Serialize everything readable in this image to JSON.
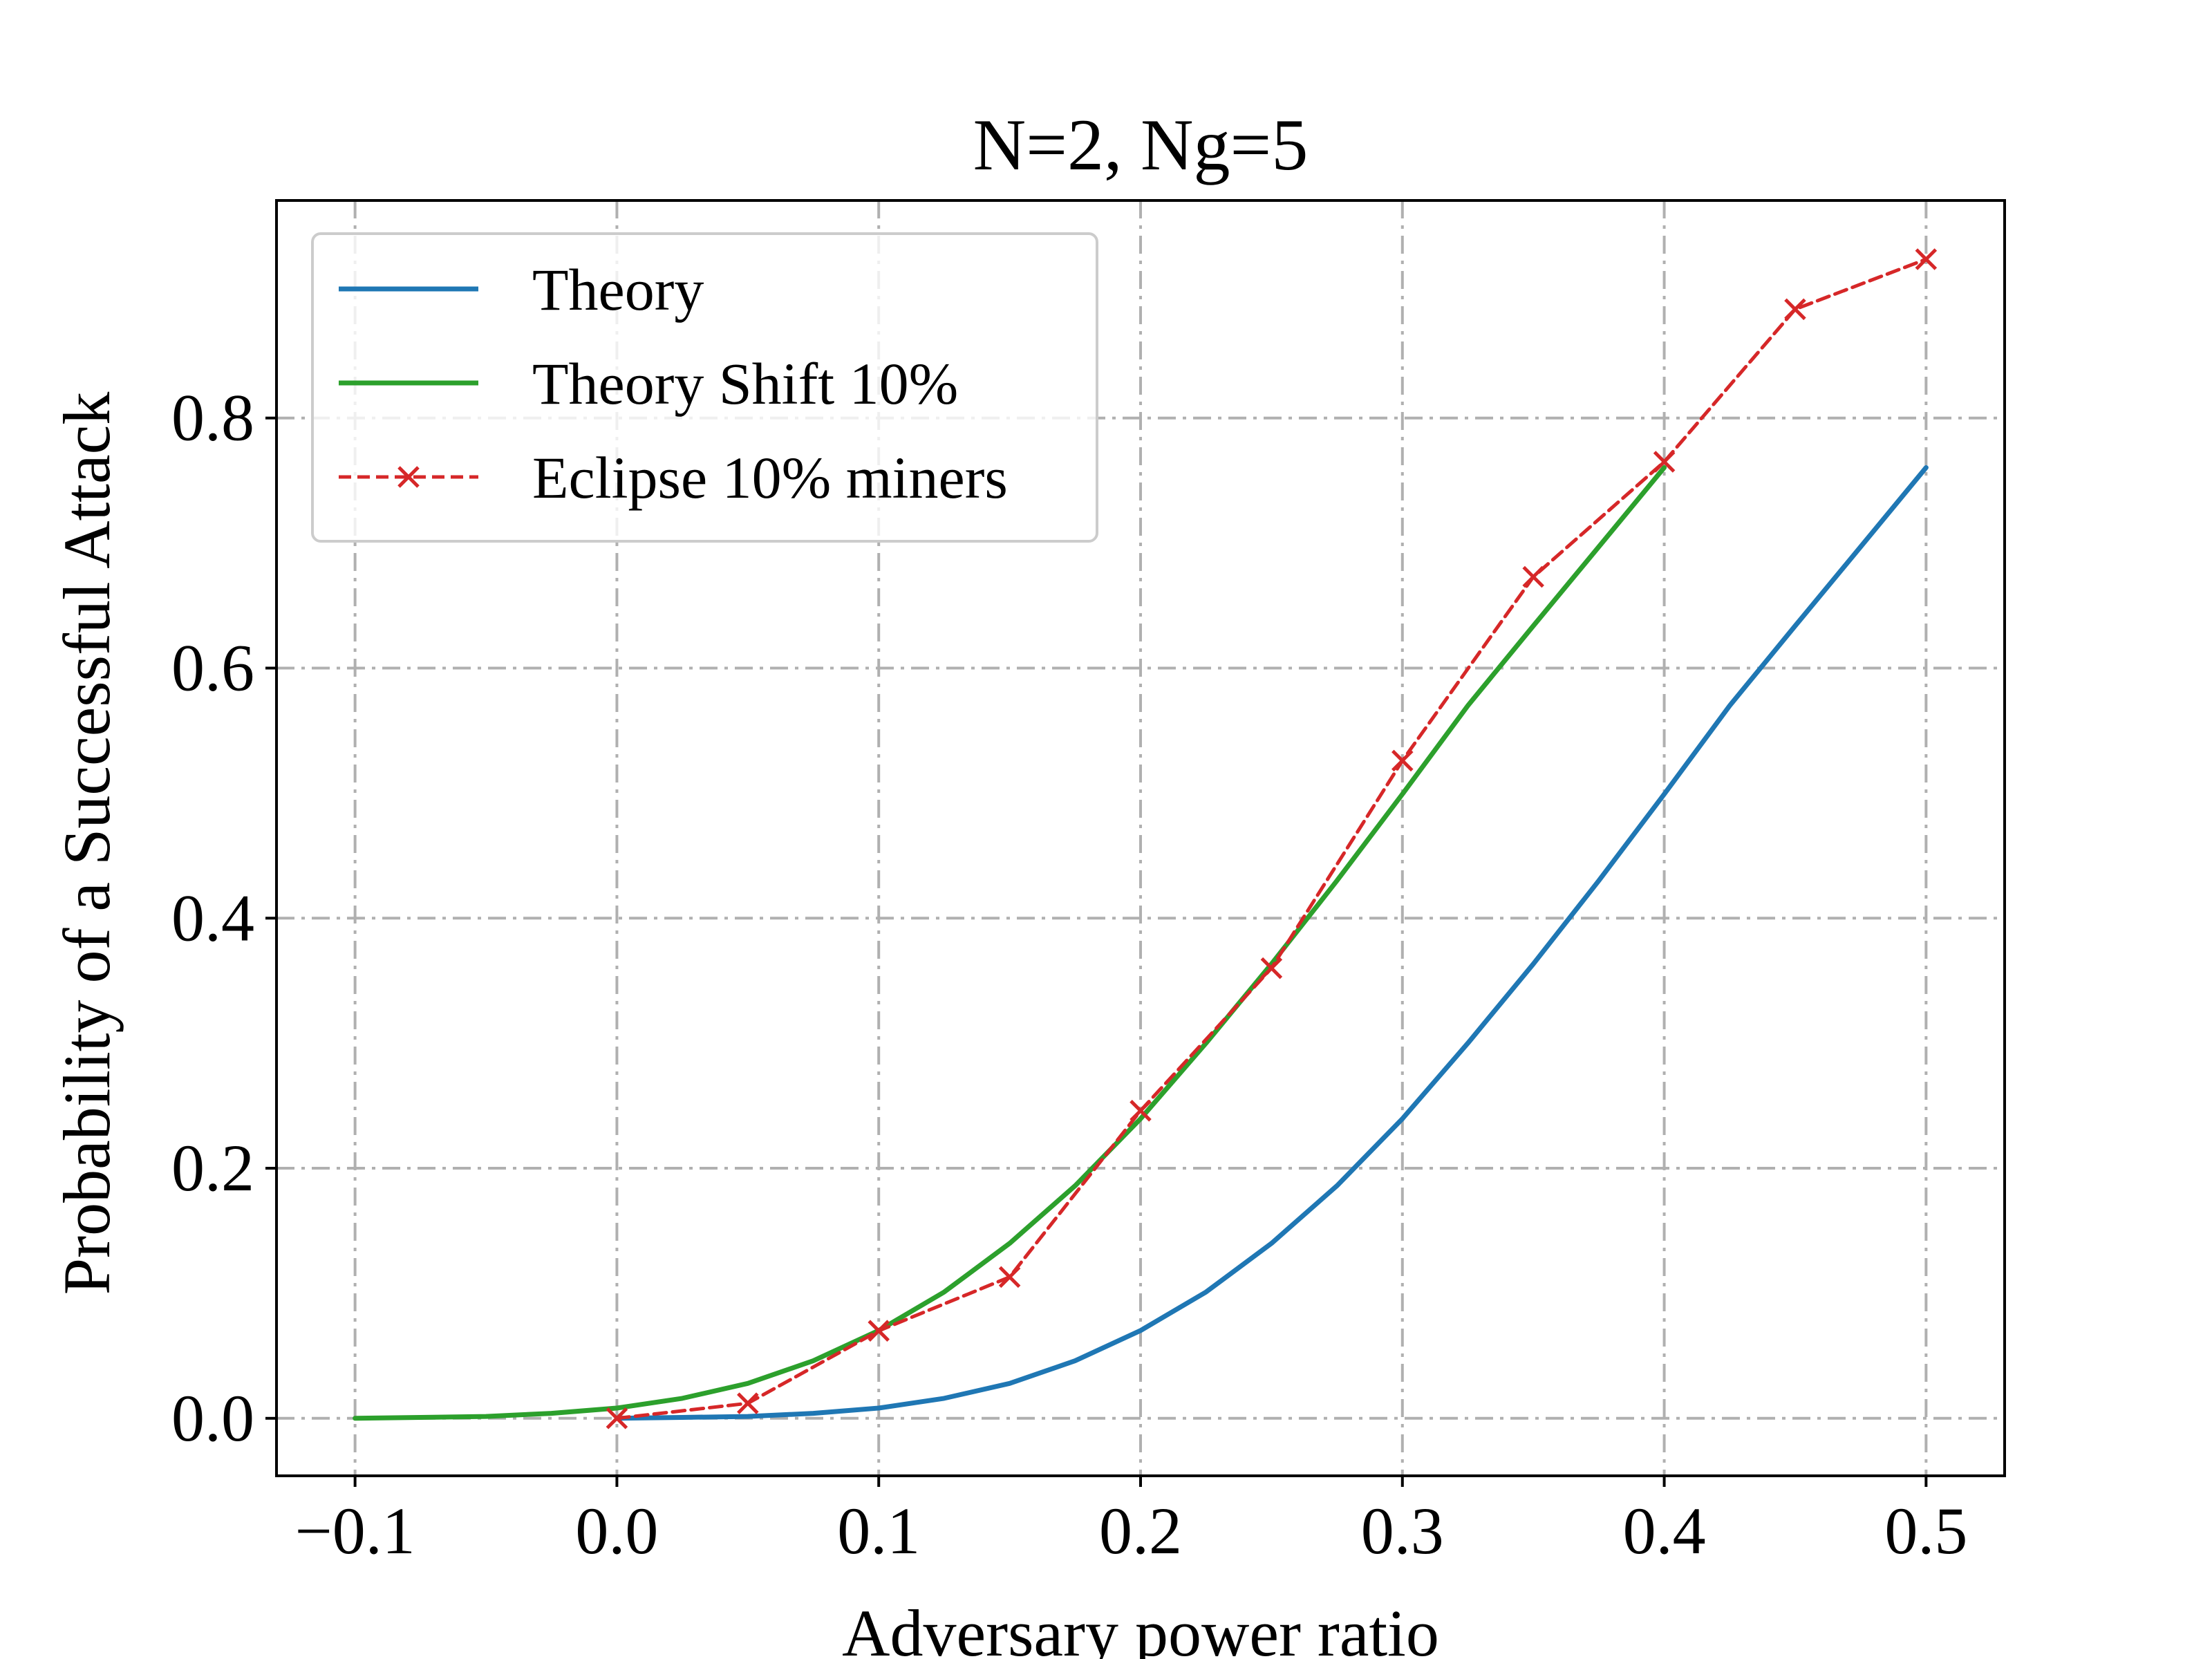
{
  "chart_data": {
    "type": "line",
    "title": "N=2, Ng=5",
    "xlabel": "Adversary power ratio",
    "ylabel": "Probability of a Successful Attack",
    "xlim": [
      -0.13,
      0.53
    ],
    "ylim": [
      -0.046,
      0.974
    ],
    "xticks": [
      -0.1,
      0.0,
      0.1,
      0.2,
      0.3,
      0.4,
      0.5
    ],
    "xtick_labels": [
      "−0.1",
      "0.0",
      "0.1",
      "0.2",
      "0.3",
      "0.4",
      "0.5"
    ],
    "yticks": [
      0.0,
      0.2,
      0.4,
      0.6,
      0.8
    ],
    "ytick_labels": [
      "0.0",
      "0.2",
      "0.4",
      "0.6",
      "0.8"
    ],
    "grid": true,
    "legend_position": "upper-left",
    "series": [
      {
        "name": "Theory",
        "color": "#1f77b4",
        "style": "solid",
        "marker": "none",
        "x": [
          0.0,
          0.025,
          0.05,
          0.075,
          0.1,
          0.125,
          0.15,
          0.175,
          0.2,
          0.225,
          0.25,
          0.275,
          0.3,
          0.325,
          0.35,
          0.375,
          0.4,
          0.425,
          0.45,
          0.475,
          0.5
        ],
        "y": [
          0.0,
          0.0007,
          0.0015,
          0.004,
          0.0082,
          0.016,
          0.0279,
          0.046,
          0.0702,
          0.101,
          0.1399,
          0.186,
          0.2396,
          0.3,
          0.3634,
          0.43,
          0.4992,
          0.57,
          0.6338,
          0.697,
          0.7604
        ]
      },
      {
        "name": "Theory Shift 10%",
        "color": "#2ca02c",
        "style": "solid",
        "marker": "none",
        "x": [
          -0.1,
          -0.075,
          -0.05,
          -0.025,
          0.0,
          0.025,
          0.05,
          0.075,
          0.1,
          0.125,
          0.15,
          0.175,
          0.2,
          0.225,
          0.25,
          0.275,
          0.3,
          0.325,
          0.35,
          0.375,
          0.4
        ],
        "y": [
          0.0,
          0.0007,
          0.0015,
          0.004,
          0.0082,
          0.016,
          0.0279,
          0.046,
          0.0702,
          0.101,
          0.1399,
          0.186,
          0.2396,
          0.3,
          0.3634,
          0.43,
          0.4992,
          0.57,
          0.6338,
          0.697,
          0.7604
        ]
      },
      {
        "name": "Eclipse 10% miners",
        "color": "#d62728",
        "style": "dashed",
        "marker": "x",
        "x": [
          0.0,
          0.05,
          0.1,
          0.15,
          0.2,
          0.25,
          0.3,
          0.35,
          0.4,
          0.45,
          0.5
        ],
        "y": [
          0.0,
          0.012,
          0.07,
          0.113,
          0.246,
          0.36,
          0.526,
          0.673,
          0.765,
          0.887,
          0.927
        ]
      }
    ]
  }
}
